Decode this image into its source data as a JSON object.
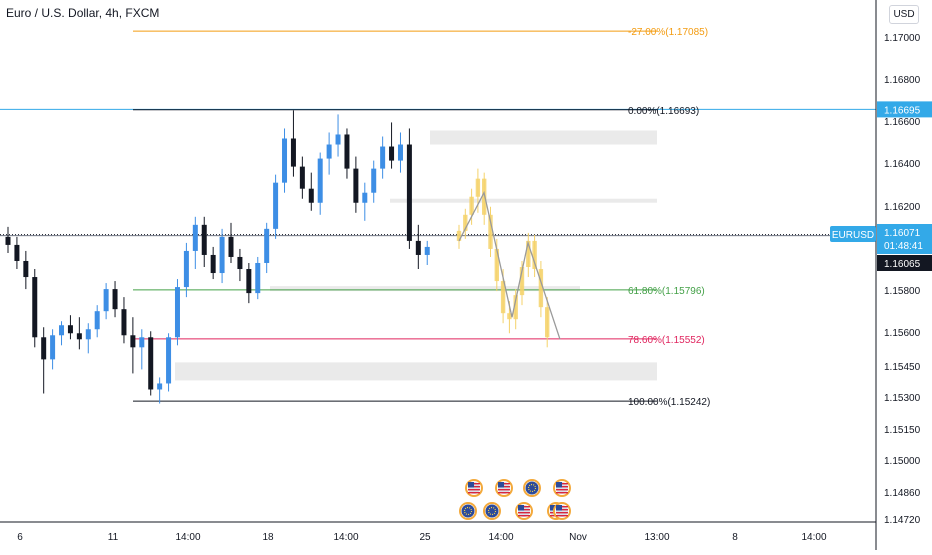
{
  "chart_title": "Euro / U.S. Dollar, 4h, FXCM",
  "currency_button": "USD",
  "colors": {
    "up": "#3d8ee5",
    "down": "#131722",
    "projection": "#f4d26a",
    "line_blue": "#33a9e8",
    "fib_orange": "#f39c12",
    "fib_green": "#43a047",
    "fib_red": "#e0245e",
    "fib_black": "#131722",
    "zone_gray": "#e3e3e3"
  },
  "chart_data": {
    "type": "candlestick",
    "title": "Euro / U.S. Dollar, 4h, FXCM",
    "ylim": [
      1.1465,
      1.1718
    ],
    "y_ticks": [
      "1.17000",
      "1.16800",
      "1.16600",
      "1.16400",
      "1.16200",
      "1.15800",
      "1.15600",
      "1.15450",
      "1.15300",
      "1.15150",
      "1.15000",
      "1.14860",
      "1.14720"
    ],
    "x_ticks": [
      "6",
      "11",
      "14:00",
      "18",
      "14:00",
      "25",
      "14:00",
      "Nov",
      "13:00",
      "8",
      "14:00"
    ],
    "grid": false,
    "candles": [
      {
        "o": 1.1606,
        "h": 1.1611,
        "l": 1.1598,
        "c": 1.1602
      },
      {
        "o": 1.1602,
        "h": 1.1606,
        "l": 1.159,
        "c": 1.1594
      },
      {
        "o": 1.1594,
        "h": 1.1599,
        "l": 1.158,
        "c": 1.1586
      },
      {
        "o": 1.1586,
        "h": 1.159,
        "l": 1.1551,
        "c": 1.1556
      },
      {
        "o": 1.1556,
        "h": 1.1561,
        "l": 1.1528,
        "c": 1.1545
      },
      {
        "o": 1.1545,
        "h": 1.156,
        "l": 1.154,
        "c": 1.1557
      },
      {
        "o": 1.1557,
        "h": 1.1564,
        "l": 1.1552,
        "c": 1.1562
      },
      {
        "o": 1.1562,
        "h": 1.1567,
        "l": 1.1555,
        "c": 1.1558
      },
      {
        "o": 1.1558,
        "h": 1.1566,
        "l": 1.155,
        "c": 1.1555
      },
      {
        "o": 1.1555,
        "h": 1.1563,
        "l": 1.1548,
        "c": 1.156
      },
      {
        "o": 1.156,
        "h": 1.1572,
        "l": 1.1556,
        "c": 1.1569
      },
      {
        "o": 1.1569,
        "h": 1.1583,
        "l": 1.1565,
        "c": 1.158
      },
      {
        "o": 1.158,
        "h": 1.1584,
        "l": 1.1566,
        "c": 1.157
      },
      {
        "o": 1.157,
        "h": 1.1576,
        "l": 1.1553,
        "c": 1.1557
      },
      {
        "o": 1.1557,
        "h": 1.1566,
        "l": 1.1538,
        "c": 1.1551
      },
      {
        "o": 1.1551,
        "h": 1.156,
        "l": 1.154,
        "c": 1.1556
      },
      {
        "o": 1.1556,
        "h": 1.1559,
        "l": 1.1527,
        "c": 1.153
      },
      {
        "o": 1.153,
        "h": 1.1536,
        "l": 1.1523,
        "c": 1.1533
      },
      {
        "o": 1.1533,
        "h": 1.1558,
        "l": 1.1529,
        "c": 1.1556
      },
      {
        "o": 1.1556,
        "h": 1.1585,
        "l": 1.1552,
        "c": 1.1581
      },
      {
        "o": 1.1581,
        "h": 1.1603,
        "l": 1.1576,
        "c": 1.1599
      },
      {
        "o": 1.1599,
        "h": 1.1616,
        "l": 1.159,
        "c": 1.1612
      },
      {
        "o": 1.1612,
        "h": 1.1616,
        "l": 1.1591,
        "c": 1.1597
      },
      {
        "o": 1.1597,
        "h": 1.1601,
        "l": 1.1585,
        "c": 1.1588
      },
      {
        "o": 1.1588,
        "h": 1.161,
        "l": 1.1583,
        "c": 1.1606
      },
      {
        "o": 1.1606,
        "h": 1.1613,
        "l": 1.1593,
        "c": 1.1596
      },
      {
        "o": 1.1596,
        "h": 1.16,
        "l": 1.1584,
        "c": 1.159
      },
      {
        "o": 1.159,
        "h": 1.1593,
        "l": 1.1573,
        "c": 1.1578
      },
      {
        "o": 1.1578,
        "h": 1.1596,
        "l": 1.1575,
        "c": 1.1593
      },
      {
        "o": 1.1593,
        "h": 1.1613,
        "l": 1.1588,
        "c": 1.161
      },
      {
        "o": 1.161,
        "h": 1.1637,
        "l": 1.1605,
        "c": 1.1633
      },
      {
        "o": 1.1633,
        "h": 1.166,
        "l": 1.1628,
        "c": 1.1655
      },
      {
        "o": 1.1655,
        "h": 1.1669,
        "l": 1.1636,
        "c": 1.1641
      },
      {
        "o": 1.1641,
        "h": 1.1646,
        "l": 1.1625,
        "c": 1.163
      },
      {
        "o": 1.163,
        "h": 1.1638,
        "l": 1.1619,
        "c": 1.1623
      },
      {
        "o": 1.1623,
        "h": 1.1648,
        "l": 1.1617,
        "c": 1.1645
      },
      {
        "o": 1.1645,
        "h": 1.1658,
        "l": 1.1637,
        "c": 1.1652
      },
      {
        "o": 1.1652,
        "h": 1.1667,
        "l": 1.1646,
        "c": 1.1657
      },
      {
        "o": 1.1657,
        "h": 1.166,
        "l": 1.1635,
        "c": 1.164
      },
      {
        "o": 1.164,
        "h": 1.1646,
        "l": 1.1618,
        "c": 1.1623
      },
      {
        "o": 1.1623,
        "h": 1.1633,
        "l": 1.1614,
        "c": 1.1628
      },
      {
        "o": 1.1628,
        "h": 1.1644,
        "l": 1.1623,
        "c": 1.164
      },
      {
        "o": 1.164,
        "h": 1.1656,
        "l": 1.1635,
        "c": 1.1651
      },
      {
        "o": 1.1651,
        "h": 1.1663,
        "l": 1.164,
        "c": 1.1644
      },
      {
        "o": 1.1644,
        "h": 1.1658,
        "l": 1.1638,
        "c": 1.1652
      },
      {
        "o": 1.1652,
        "h": 1.166,
        "l": 1.16,
        "c": 1.1604
      },
      {
        "o": 1.1604,
        "h": 1.1612,
        "l": 1.159,
        "c": 1.1597
      },
      {
        "o": 1.1597,
        "h": 1.1604,
        "l": 1.1592,
        "c": 1.1601
      }
    ],
    "projection_candles": [
      {
        "o": 1.1604,
        "h": 1.1612,
        "l": 1.16,
        "c": 1.1609
      },
      {
        "o": 1.1609,
        "h": 1.162,
        "l": 1.1605,
        "c": 1.1617
      },
      {
        "o": 1.1617,
        "h": 1.163,
        "l": 1.1612,
        "c": 1.1626
      },
      {
        "o": 1.1626,
        "h": 1.164,
        "l": 1.1618,
        "c": 1.1635
      },
      {
        "o": 1.1635,
        "h": 1.1638,
        "l": 1.1612,
        "c": 1.1617
      },
      {
        "o": 1.1617,
        "h": 1.1621,
        "l": 1.1596,
        "c": 1.16
      },
      {
        "o": 1.16,
        "h": 1.1605,
        "l": 1.1579,
        "c": 1.1584
      },
      {
        "o": 1.1584,
        "h": 1.159,
        "l": 1.1563,
        "c": 1.1568
      },
      {
        "o": 1.1568,
        "h": 1.1574,
        "l": 1.1558,
        "c": 1.1565
      },
      {
        "o": 1.1565,
        "h": 1.158,
        "l": 1.156,
        "c": 1.1577
      },
      {
        "o": 1.1577,
        "h": 1.1594,
        "l": 1.1572,
        "c": 1.1591
      },
      {
        "o": 1.1591,
        "h": 1.1608,
        "l": 1.1586,
        "c": 1.1604
      },
      {
        "o": 1.1604,
        "h": 1.1607,
        "l": 1.1586,
        "c": 1.159
      },
      {
        "o": 1.159,
        "h": 1.1594,
        "l": 1.1566,
        "c": 1.1571
      },
      {
        "o": 1.1571,
        "h": 1.1576,
        "l": 1.1551,
        "c": 1.1556
      }
    ],
    "projection_path": [
      1.1604,
      1.1628,
      1.1566,
      1.1603,
      1.1555
    ],
    "fib_levels": [
      {
        "label": "-27.00%(1.17085)",
        "price": 1.17085,
        "color_key": "fib_orange"
      },
      {
        "label": "0.00%(1.16693)",
        "price": 1.16693,
        "color_key": "fib_black"
      },
      {
        "label": "61.80%(1.15796)",
        "price": 1.15796,
        "color_key": "fib_green"
      },
      {
        "label": "78.60%(1.15552)",
        "price": 1.15552,
        "color_key": "fib_red"
      },
      {
        "label": "100.00%(1.15242)",
        "price": 1.15242,
        "color_key": "fib_black"
      }
    ],
    "horizontal_lines": [
      {
        "price": 1.16695,
        "color_key": "line_blue",
        "label": "1.16695"
      },
      {
        "price": 1.16071,
        "color_key": "fib_black",
        "dotted": true
      }
    ],
    "zones": [
      {
        "top": 1.1659,
        "bottom": 1.1652
      },
      {
        "top": 1.1625,
        "bottom": 1.1623
      },
      {
        "top": 1.15815,
        "bottom": 1.1579
      },
      {
        "top": 1.15435,
        "bottom": 1.15345
      }
    ],
    "price_tags": {
      "symbol": "EURUSD",
      "price": "1.16071",
      "countdown": "01:48:41",
      "bid": "1.16065",
      "high_line": "1.16695"
    },
    "event_icons": [
      "us-flag",
      "us-flag",
      "eu-flag",
      "us-flag",
      "eu-flag",
      "eu-flag",
      "us-flag",
      "us-flag",
      "us-flag"
    ]
  }
}
